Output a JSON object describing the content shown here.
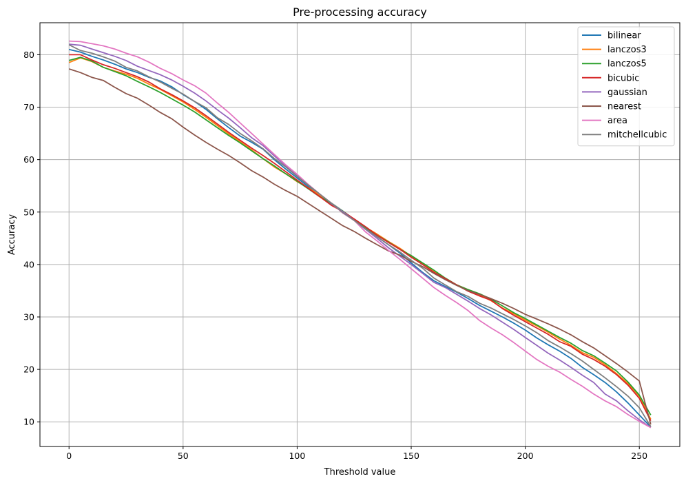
{
  "chart_data": {
    "type": "line",
    "title": "Pre-processing accuracy",
    "xlabel": "Threshold value",
    "ylabel": "Accuracy",
    "xlim": [
      -12.75,
      267.75
    ],
    "ylim": [
      5.3,
      86.1
    ],
    "xticks": [
      0,
      50,
      100,
      150,
      200,
      250
    ],
    "yticks": [
      10,
      20,
      30,
      40,
      50,
      60,
      70,
      80
    ],
    "grid": true,
    "legend_position": "top-right",
    "x": [
      0,
      5,
      10,
      15,
      20,
      25,
      30,
      35,
      40,
      45,
      50,
      55,
      60,
      65,
      70,
      75,
      80,
      85,
      90,
      95,
      100,
      105,
      110,
      115,
      120,
      125,
      130,
      135,
      140,
      145,
      150,
      155,
      160,
      165,
      170,
      175,
      180,
      185,
      190,
      195,
      200,
      205,
      210,
      215,
      220,
      225,
      230,
      235,
      240,
      245,
      250,
      255
    ],
    "series": [
      {
        "name": "bilinear",
        "color": "#1f77b4",
        "values": [
          81.0,
          80.5,
          79.7,
          79.0,
          78.2,
          77.3,
          76.6,
          75.7,
          75.0,
          73.9,
          72.4,
          71.1,
          69.6,
          67.8,
          66.1,
          64.5,
          63.3,
          62.0,
          60.0,
          58.2,
          56.5,
          54.8,
          53.1,
          51.6,
          50.0,
          48.4,
          46.9,
          45.3,
          43.8,
          42.2,
          40.3,
          38.5,
          36.9,
          35.8,
          34.7,
          33.5,
          32.2,
          31.1,
          30.0,
          28.8,
          27.5,
          26.0,
          24.7,
          23.5,
          22.1,
          20.4,
          19.0,
          17.5,
          15.7,
          13.6,
          11.3,
          9.0
        ]
      },
      {
        "name": "lanczos3",
        "color": "#ff7f0e",
        "values": [
          78.5,
          79.4,
          78.7,
          77.6,
          76.9,
          76.3,
          75.5,
          74.4,
          73.4,
          72.2,
          71.0,
          69.6,
          68.1,
          66.5,
          64.9,
          63.4,
          61.9,
          60.2,
          58.6,
          57.3,
          55.8,
          54.6,
          53.2,
          51.7,
          50.0,
          48.4,
          47.1,
          45.8,
          44.4,
          43.1,
          41.6,
          40.1,
          38.6,
          37.2,
          36.1,
          35.2,
          34.2,
          33.1,
          31.7,
          30.6,
          29.4,
          28.3,
          27.1,
          25.8,
          24.6,
          23.2,
          22.3,
          20.9,
          19.2,
          17.3,
          14.9,
          10.5
        ]
      },
      {
        "name": "lanczos5",
        "color": "#2ca02c",
        "values": [
          78.9,
          79.5,
          78.8,
          77.6,
          76.8,
          76.0,
          74.9,
          73.9,
          72.8,
          71.6,
          70.4,
          69.1,
          67.6,
          66.1,
          64.6,
          63.2,
          61.7,
          60.2,
          58.8,
          57.3,
          55.9,
          54.4,
          52.9,
          51.7,
          50.2,
          48.6,
          47.0,
          45.6,
          44.3,
          42.9,
          41.7,
          40.3,
          38.9,
          37.4,
          36.1,
          35.2,
          34.4,
          33.4,
          32.1,
          30.8,
          29.7,
          28.5,
          27.3,
          26.1,
          25.0,
          23.6,
          22.6,
          21.2,
          19.7,
          17.6,
          15.1,
          11.3
        ]
      },
      {
        "name": "bicubic",
        "color": "#d62728",
        "values": [
          80.0,
          80.0,
          79.0,
          78.1,
          77.4,
          76.6,
          75.8,
          74.8,
          73.5,
          72.4,
          71.2,
          69.9,
          68.4,
          66.8,
          65.2,
          63.7,
          62.2,
          60.8,
          59.3,
          57.7,
          56.1,
          54.5,
          52.9,
          51.3,
          50.1,
          48.7,
          47.2,
          45.6,
          44.2,
          42.9,
          41.4,
          40.0,
          38.5,
          37.3,
          36.1,
          34.9,
          34.0,
          33.2,
          31.6,
          30.3,
          29.1,
          27.9,
          26.7,
          25.3,
          24.4,
          22.9,
          21.9,
          20.6,
          19.0,
          17.0,
          14.5,
          10.2
        ]
      },
      {
        "name": "gaussian",
        "color": "#9467bd",
        "values": [
          82.0,
          81.8,
          81.1,
          80.4,
          79.7,
          78.9,
          77.8,
          77.0,
          76.2,
          75.2,
          74.0,
          72.7,
          71.2,
          69.5,
          67.9,
          66.1,
          64.2,
          62.7,
          60.7,
          58.8,
          57.0,
          55.2,
          53.4,
          51.7,
          50.1,
          48.4,
          46.7,
          45.0,
          43.2,
          41.6,
          40.0,
          38.3,
          36.6,
          35.6,
          34.3,
          33.0,
          31.6,
          30.4,
          29.0,
          27.6,
          26.1,
          24.6,
          23.1,
          21.8,
          20.4,
          18.9,
          17.5,
          15.3,
          14.0,
          12.1,
          10.4,
          8.9
        ]
      },
      {
        "name": "nearest",
        "color": "#8c564b",
        "values": [
          77.3,
          76.6,
          75.7,
          75.1,
          73.8,
          72.6,
          71.7,
          70.4,
          69.0,
          67.8,
          66.2,
          64.7,
          63.3,
          62.0,
          60.8,
          59.4,
          57.9,
          56.7,
          55.3,
          54.1,
          53.0,
          51.6,
          50.2,
          48.8,
          47.4,
          46.3,
          45.0,
          43.8,
          42.6,
          41.8,
          40.6,
          39.6,
          38.3,
          37.1,
          36.0,
          35.0,
          34.3,
          33.5,
          32.6,
          31.6,
          30.5,
          29.6,
          28.7,
          27.7,
          26.6,
          25.3,
          24.1,
          22.6,
          21.1,
          19.5,
          17.8,
          9.5
        ]
      },
      {
        "name": "area",
        "color": "#e377c2",
        "values": [
          82.6,
          82.5,
          82.1,
          81.7,
          81.1,
          80.3,
          79.6,
          78.6,
          77.4,
          76.4,
          75.2,
          74.1,
          72.7,
          70.8,
          69.0,
          67.0,
          65.0,
          63.0,
          61.0,
          59.0,
          57.2,
          55.2,
          53.4,
          51.7,
          49.8,
          48.4,
          46.2,
          44.5,
          42.7,
          41.0,
          39.2,
          37.4,
          35.6,
          34.1,
          32.7,
          31.2,
          29.3,
          27.9,
          26.6,
          25.1,
          23.5,
          21.9,
          20.6,
          19.5,
          18.1,
          16.8,
          15.3,
          14.0,
          12.9,
          11.4,
          10.1,
          8.9
        ]
      },
      {
        "name": "mitchellcubic",
        "color": "#7f7f7f",
        "values": [
          81.9,
          80.8,
          80.3,
          79.6,
          78.8,
          77.6,
          76.9,
          75.8,
          74.8,
          73.6,
          72.5,
          71.1,
          69.9,
          68.0,
          66.7,
          65.0,
          63.6,
          62.1,
          60.2,
          58.6,
          56.8,
          55.1,
          53.4,
          51.7,
          49.9,
          48.4,
          46.8,
          45.3,
          43.8,
          42.4,
          40.8,
          39.3,
          37.4,
          36.1,
          34.8,
          33.9,
          32.6,
          31.7,
          30.6,
          29.5,
          28.3,
          27.0,
          25.5,
          24.3,
          23.0,
          21.6,
          20.0,
          18.4,
          16.7,
          14.9,
          12.7,
          9.1
        ]
      }
    ]
  }
}
